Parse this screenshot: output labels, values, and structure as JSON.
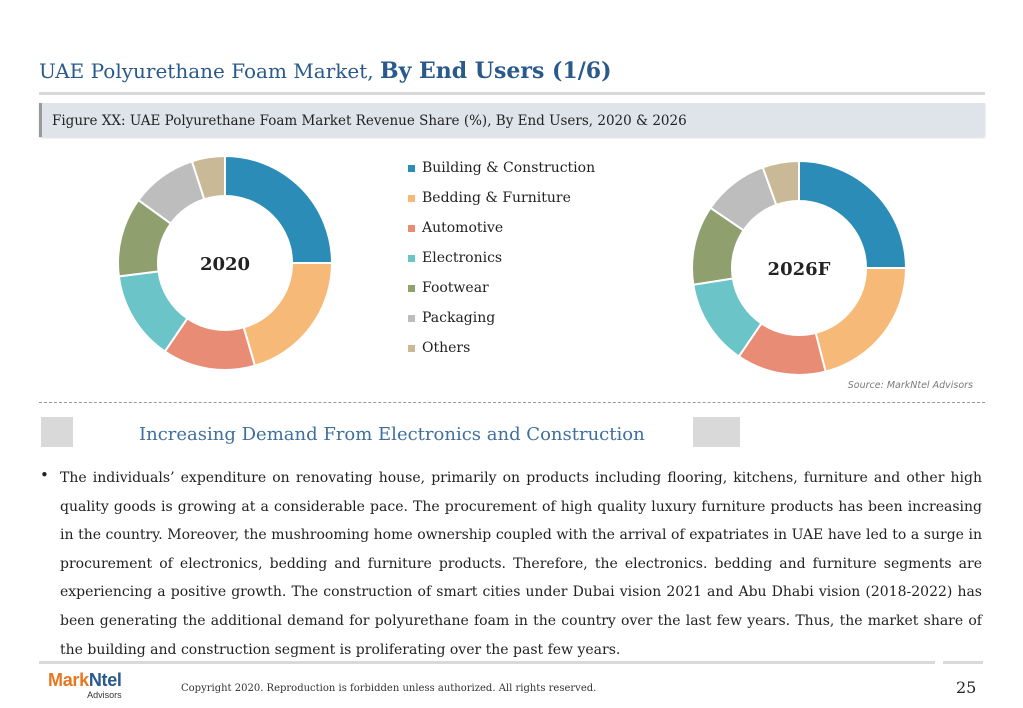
{
  "header": {
    "title_regular": "UAE Polyurethane Foam Market,",
    "title_bold": "By End Users (1/6)"
  },
  "figure": {
    "caption": "Figure XX: UAE Polyurethane Foam Market Revenue Share (%), By End Users, 2020 & 2026"
  },
  "chart_data": [
    {
      "type": "pie",
      "style": "donut",
      "center_label": "2020",
      "categories": [
        "Building & Construction",
        "Bedding & Furniture",
        "Automotive",
        "Electronics",
        "Footwear",
        "Packaging",
        "Others"
      ],
      "values": [
        25,
        20.5,
        14,
        13.5,
        12,
        10,
        5
      ],
      "colors": [
        "#2b8cb8",
        "#f7b977",
        "#e98c75",
        "#6ac4c8",
        "#8fa06e",
        "#bdbdbd",
        "#c9b996"
      ]
    },
    {
      "type": "pie",
      "style": "donut",
      "center_label": "2026F",
      "categories": [
        "Building & Construction",
        "Bedding & Furniture",
        "Automotive",
        "Electronics",
        "Footwear",
        "Packaging",
        "Others"
      ],
      "values": [
        25,
        21,
        13.5,
        13,
        12,
        10,
        5.5
      ],
      "colors": [
        "#2b8cb8",
        "#f7b977",
        "#e98c75",
        "#6ac4c8",
        "#8fa06e",
        "#bdbdbd",
        "#c9b996"
      ]
    }
  ],
  "legend": {
    "items": [
      {
        "label": "Building & Construction",
        "color": "#2b8cb8"
      },
      {
        "label": "Bedding & Furniture",
        "color": "#f7b977"
      },
      {
        "label": "Automotive",
        "color": "#e98c75"
      },
      {
        "label": "Electronics",
        "color": "#6ac4c8"
      },
      {
        "label": "Footwear",
        "color": "#8fa06e"
      },
      {
        "label": "Packaging",
        "color": "#bdbdbd"
      },
      {
        "label": "Others",
        "color": "#c9b996"
      }
    ]
  },
  "source": "Source: MarkNtel Advisors",
  "section": {
    "heading": "Increasing Demand From Electronics and Construction",
    "bullet": "The individuals’ expenditure on renovating house, primarily on products including flooring, kitchens, furniture and other high quality goods is growing at a considerable pace. The procurement of high quality luxury furniture products has been increasing in the country. Moreover, the mushrooming home ownership coupled with the arrival of expatriates in UAE have led to a surge in procurement of electronics, bedding and furniture products. Therefore, the electronics. bedding and furniture segments are experiencing a positive growth. The construction of smart cities under Dubai vision 2021 and Abu Dhabi vision (2018-2022) has been generating the additional demand for polyurethane foam in the country over the last few years. Thus, the market share of the building and construction segment is proliferating over the past few years."
  },
  "footer": {
    "logo_part1": "Mark",
    "logo_part2": "Ntel",
    "logo_sub": "Advisors",
    "copyright": "Copyright 2020. Reproduction is forbidden unless authorized. All rights reserved.",
    "page_number": "25"
  }
}
